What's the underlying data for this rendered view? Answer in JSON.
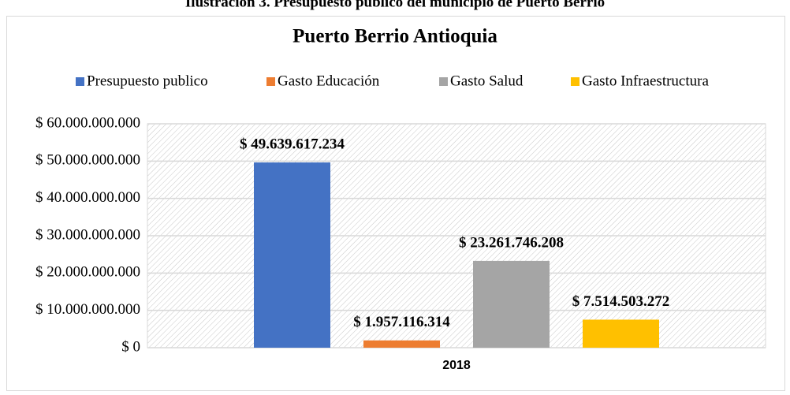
{
  "chart_data": {
    "type": "bar",
    "caption": "Ilustración 3. Presupuesto publico del municipio de Puerto Berrio",
    "title": "Puerto Berrio Antioquia",
    "categories": [
      "2018"
    ],
    "series": [
      {
        "name": "Presupuesto publico",
        "color": "#4472c4",
        "values": [
          49639617234
        ],
        "value_labels": [
          "$ 49.639.617.234"
        ]
      },
      {
        "name": "Gasto Educación",
        "color": "#ed7d31",
        "values": [
          1957116314
        ],
        "value_labels": [
          "$ 1.957.116.314"
        ]
      },
      {
        "name": "Gasto Salud",
        "color": "#a5a5a5",
        "values": [
          23261746208
        ],
        "value_labels": [
          "$ 23.261.746.208"
        ]
      },
      {
        "name": "Gasto Infraestructura",
        "color": "#ffc000",
        "values": [
          7514503272
        ],
        "value_labels": [
          "$ 7.514.503.272"
        ]
      }
    ],
    "ylim": [
      0,
      60000000000
    ],
    "yticks": [
      {
        "value": 0,
        "label": "$ 0"
      },
      {
        "value": 10000000000,
        "label": "$ 10.000.000.000"
      },
      {
        "value": 20000000000,
        "label": "$ 20.000.000.000"
      },
      {
        "value": 30000000000,
        "label": "$ 30.000.000.000"
      },
      {
        "value": 40000000000,
        "label": "$ 40.000.000.000"
      },
      {
        "value": 50000000000,
        "label": "$ 50.000.000.000"
      },
      {
        "value": 60000000000,
        "label": "$ 60.000.000.000"
      }
    ],
    "grid": true,
    "legend": "top"
  }
}
